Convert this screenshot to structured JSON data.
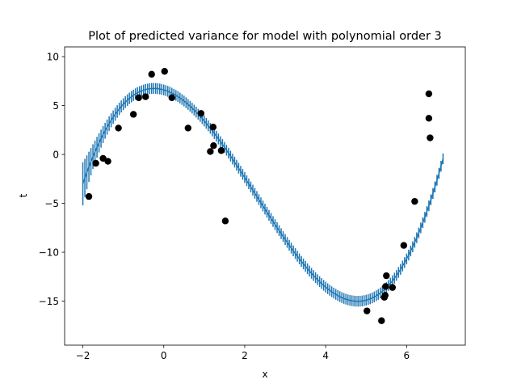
{
  "chart_data": {
    "type": "line",
    "title": "Plot of predicted variance for model with polynomial order 3",
    "xlabel": "x",
    "ylabel": "t",
    "xlim": [
      -2.45,
      7.45
    ],
    "ylim": [
      -19.5,
      11.0
    ],
    "x_ticks": [
      -2,
      0,
      2,
      4,
      6
    ],
    "x_tick_labels": [
      "−2",
      "0",
      "2",
      "4",
      "6"
    ],
    "y_ticks": [
      -15,
      -10,
      -5,
      0,
      5,
      10
    ],
    "y_tick_labels": [
      "−15",
      "−10",
      "−5",
      "0",
      "5",
      "10"
    ],
    "grid": false,
    "legend": "none",
    "colors": {
      "prediction": "#1f77b4",
      "data_points": "#000000"
    },
    "prediction": {
      "model": "cubic polynomial with error bars (predicted variance)",
      "x_range": [
        -2.0,
        6.9
      ],
      "coefficients": [
        6.6,
        -1.2,
        -2.32,
        0.34
      ],
      "error_bar_std": {
        "base": 0.55,
        "at_left_edge": 2.2,
        "left_decay": 0.3
      }
    },
    "points": [
      {
        "x": -1.85,
        "y": -4.3
      },
      {
        "x": -1.68,
        "y": -0.9
      },
      {
        "x": -1.5,
        "y": -0.4
      },
      {
        "x": -1.38,
        "y": -0.7
      },
      {
        "x": -1.12,
        "y": 2.7
      },
      {
        "x": -0.75,
        "y": 4.1
      },
      {
        "x": -0.62,
        "y": 5.8
      },
      {
        "x": -0.45,
        "y": 5.9
      },
      {
        "x": -0.3,
        "y": 8.2
      },
      {
        "x": 0.02,
        "y": 8.5
      },
      {
        "x": 0.2,
        "y": 5.8
      },
      {
        "x": 0.6,
        "y": 2.7
      },
      {
        "x": 0.92,
        "y": 4.2
      },
      {
        "x": 1.15,
        "y": 0.3
      },
      {
        "x": 1.22,
        "y": 2.8
      },
      {
        "x": 1.23,
        "y": 0.9
      },
      {
        "x": 1.42,
        "y": 0.4
      },
      {
        "x": 1.52,
        "y": -6.8
      },
      {
        "x": 5.02,
        "y": -16.0
      },
      {
        "x": 5.38,
        "y": -17.0
      },
      {
        "x": 5.45,
        "y": -14.6
      },
      {
        "x": 5.47,
        "y": -14.4
      },
      {
        "x": 5.48,
        "y": -13.5
      },
      {
        "x": 5.5,
        "y": -12.4
      },
      {
        "x": 5.65,
        "y": -13.6
      },
      {
        "x": 5.93,
        "y": -9.3
      },
      {
        "x": 6.2,
        "y": -4.8
      },
      {
        "x": 6.55,
        "y": 3.7
      },
      {
        "x": 6.58,
        "y": 1.7
      },
      {
        "x": 6.55,
        "y": 6.2
      }
    ]
  }
}
